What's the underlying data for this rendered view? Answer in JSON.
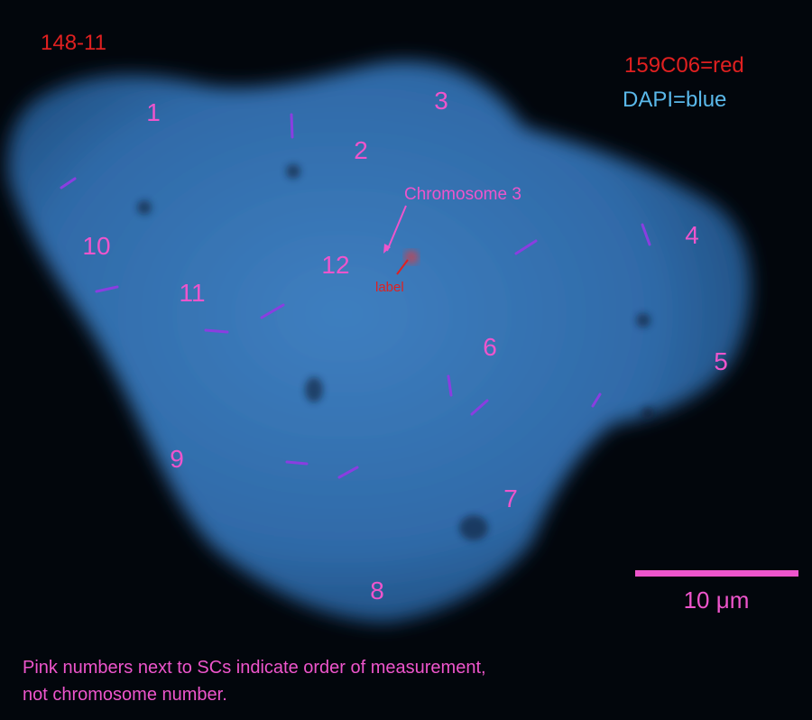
{
  "sample_id": "148-11",
  "legend": [
    "159C06=red",
    "DAPI=blue"
  ],
  "sc_numbers": [
    "1",
    "2",
    "3",
    "4",
    "5",
    "6",
    "7",
    "8",
    "9",
    "10",
    "11",
    "12"
  ],
  "annotation": "Chromosome 3",
  "probe_label": "label",
  "scale_bar": "10 μm",
  "caption": [
    "Pink numbers next to SCs indicate order of measurement,",
    "not chromosome number."
  ]
}
